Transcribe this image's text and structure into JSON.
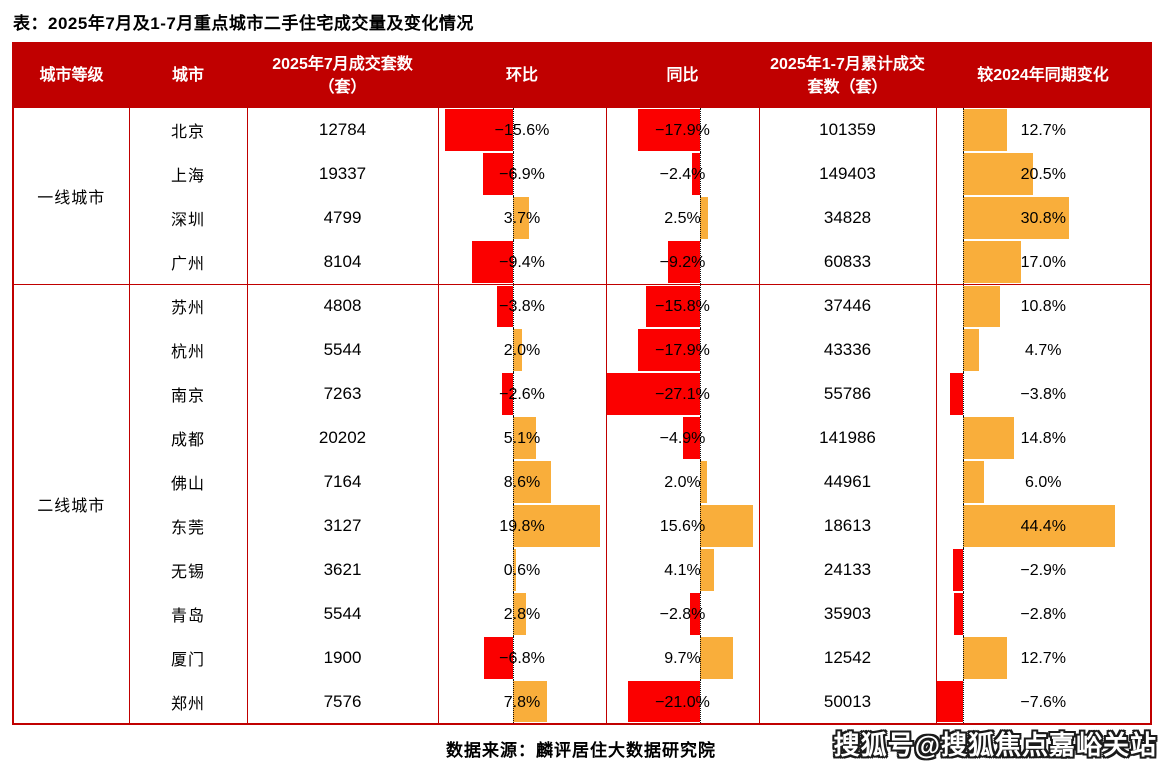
{
  "colors": {
    "header_bg": "#C00000",
    "table_border": "#C00000",
    "negative_bar": "#FB0000",
    "positive_bar": "#F9AE3B",
    "header_text": "#FFFFFF",
    "body_text": "#000000"
  },
  "footer": {
    "source": "数据来源：麟评居住大数据研究院",
    "watermark": "搜狐号@搜狐焦点嘉峪关站"
  },
  "chart_data": {
    "type": "table",
    "title": "表：2025年7月及1-7月重点城市二手住宅成交量及变化情况",
    "source": "数据来源：麟评居住大数据研究院",
    "columns": [
      "城市等级",
      "城市",
      "2025年7月成交套数（套）",
      "环比",
      "同比",
      "2025年1-7月累计成交套数（套）",
      "较2024年同期变化"
    ],
    "bar_columns": [
      "环比",
      "同比",
      "较2024年同期变化"
    ],
    "bar_colors": {
      "negative": "#FB0000",
      "positive": "#F9AE3B"
    },
    "groups": [
      {
        "tier": "一线城市",
        "rows": [
          {
            "city": "北京",
            "jul_sales": "12784",
            "mom_pct": -15.6,
            "yoy_pct": -17.9,
            "cum_sales": "101359",
            "chg_pct": 12.7
          },
          {
            "city": "上海",
            "jul_sales": "19337",
            "mom_pct": -6.9,
            "yoy_pct": -2.4,
            "cum_sales": "149403",
            "chg_pct": 20.5
          },
          {
            "city": "深圳",
            "jul_sales": "4799",
            "mom_pct": 3.7,
            "yoy_pct": 2.5,
            "cum_sales": "34828",
            "chg_pct": 30.8
          },
          {
            "city": "广州",
            "jul_sales": "8104",
            "mom_pct": -9.4,
            "yoy_pct": -9.2,
            "cum_sales": "60833",
            "chg_pct": 17.0
          }
        ]
      },
      {
        "tier": "二线城市",
        "rows": [
          {
            "city": "苏州",
            "jul_sales": "4808",
            "mom_pct": -3.8,
            "yoy_pct": -15.8,
            "cum_sales": "37446",
            "chg_pct": 10.8
          },
          {
            "city": "杭州",
            "jul_sales": "5544",
            "mom_pct": 2.0,
            "yoy_pct": -17.9,
            "cum_sales": "43336",
            "chg_pct": 4.7
          },
          {
            "city": "南京",
            "jul_sales": "7263",
            "mom_pct": -2.6,
            "yoy_pct": -27.1,
            "cum_sales": "55786",
            "chg_pct": -3.8
          },
          {
            "city": "成都",
            "jul_sales": "20202",
            "mom_pct": 5.1,
            "yoy_pct": -4.9,
            "cum_sales": "141986",
            "chg_pct": 14.8
          },
          {
            "city": "佛山",
            "jul_sales": "7164",
            "mom_pct": 8.6,
            "yoy_pct": 2.0,
            "cum_sales": "44961",
            "chg_pct": 6.0
          },
          {
            "city": "东莞",
            "jul_sales": "3127",
            "mom_pct": 19.8,
            "yoy_pct": 15.6,
            "cum_sales": "18613",
            "chg_pct": 44.4
          },
          {
            "city": "无锡",
            "jul_sales": "3621",
            "mom_pct": 0.6,
            "yoy_pct": 4.1,
            "cum_sales": "24133",
            "chg_pct": -2.9
          },
          {
            "city": "青岛",
            "jul_sales": "5544",
            "mom_pct": 2.8,
            "yoy_pct": -2.8,
            "cum_sales": "35903",
            "chg_pct": -2.8
          },
          {
            "city": "厦门",
            "jul_sales": "1900",
            "mom_pct": -6.8,
            "yoy_pct": 9.7,
            "cum_sales": "12542",
            "chg_pct": 12.7
          },
          {
            "city": "郑州",
            "jul_sales": "7576",
            "mom_pct": 7.8,
            "yoy_pct": -21.0,
            "cum_sales": "50013",
            "chg_pct": -7.6
          }
        ]
      }
    ]
  }
}
